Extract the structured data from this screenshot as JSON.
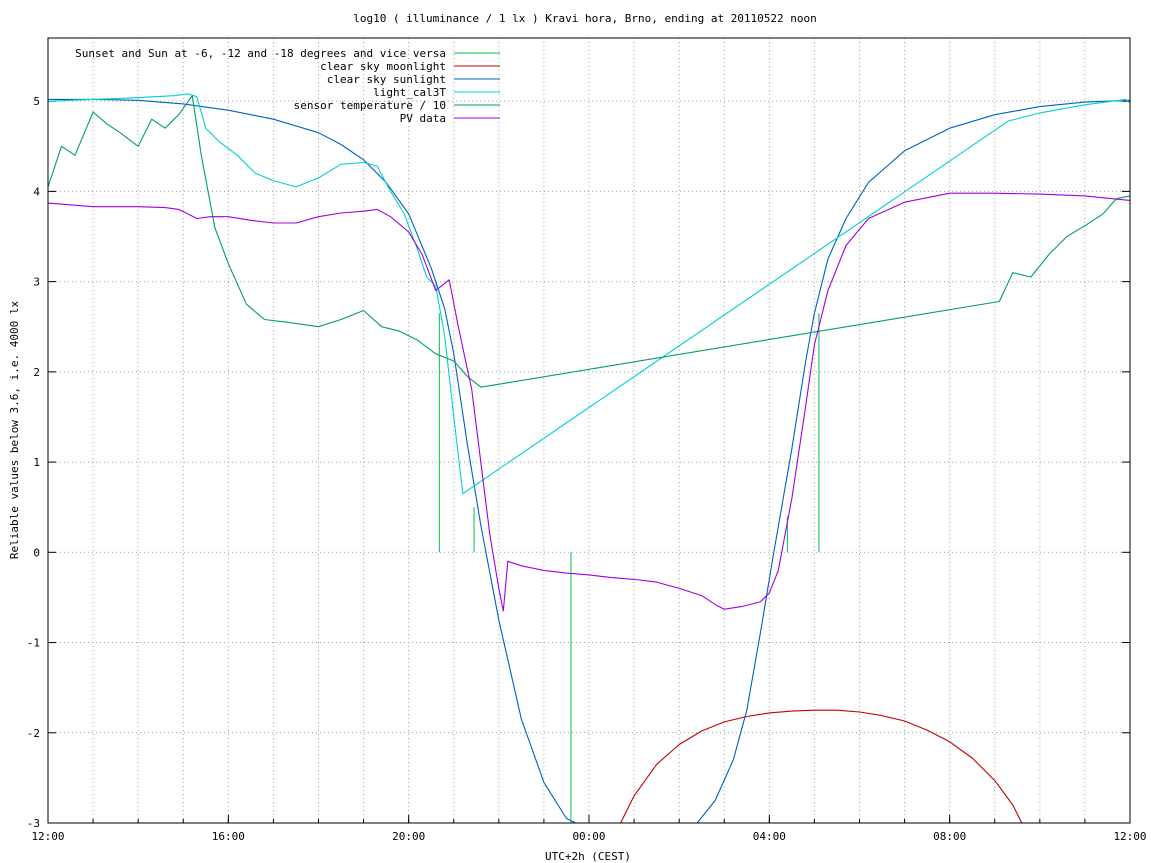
{
  "chart_data": {
    "type": "line",
    "title": "log10 ( illuminance / 1 lx ) Kravi hora, Brno, ending at 20110522 noon",
    "xlabel": "UTC+2h (CEST)",
    "ylabel": "Reliable values below 3.6, i.e. 4000 lx",
    "x_unit": "hours since 12:00 of the previous day",
    "xlim": [
      0,
      24
    ],
    "ylim": [
      -3,
      5.7
    ],
    "x_ticks": [
      {
        "x": 0,
        "label": "12:00"
      },
      {
        "x": 4,
        "label": "16:00"
      },
      {
        "x": 8,
        "label": "20:00"
      },
      {
        "x": 12,
        "label": "00:00"
      },
      {
        "x": 16,
        "label": "04:00"
      },
      {
        "x": 20,
        "label": "08:00"
      },
      {
        "x": 24,
        "label": "12:00"
      }
    ],
    "y_ticks": [
      {
        "y": -3,
        "label": "-3"
      },
      {
        "y": -2,
        "label": "-2"
      },
      {
        "y": -1,
        "label": "-1"
      },
      {
        "y": 0,
        "label": "0"
      },
      {
        "y": 1,
        "label": "1"
      },
      {
        "y": 2,
        "label": "2"
      },
      {
        "y": 3,
        "label": "3"
      },
      {
        "y": 4,
        "label": "4"
      },
      {
        "y": 5,
        "label": "5"
      }
    ],
    "grid": true,
    "legend_position": "top-left",
    "series": [
      {
        "name": "Sunset and Sun at -6, -12 and -18 degrees and vice versa",
        "color": "#00c040",
        "style": "impulses",
        "points": [
          [
            8.68,
            2.65
          ],
          [
            9.45,
            0.5
          ],
          [
            10.4,
            0.0
          ],
          [
            11.6,
            -3.0
          ],
          [
            14.5,
            0.0
          ],
          [
            15.5,
            0.0
          ],
          [
            16.4,
            0.4
          ],
          [
            17.1,
            2.65
          ]
        ]
      },
      {
        "name": "clear sky moonlight",
        "color": "#c00000",
        "style": "line",
        "points": [
          [
            12.7,
            -3.0
          ],
          [
            13.0,
            -2.7
          ],
          [
            13.5,
            -2.35
          ],
          [
            14.0,
            -2.13
          ],
          [
            14.5,
            -1.98
          ],
          [
            15.0,
            -1.88
          ],
          [
            15.5,
            -1.82
          ],
          [
            16.0,
            -1.78
          ],
          [
            16.5,
            -1.76
          ],
          [
            17.0,
            -1.75
          ],
          [
            17.5,
            -1.75
          ],
          [
            18.0,
            -1.77
          ],
          [
            18.5,
            -1.81
          ],
          [
            19.0,
            -1.87
          ],
          [
            19.5,
            -1.97
          ],
          [
            20.0,
            -2.1
          ],
          [
            20.5,
            -2.28
          ],
          [
            21.0,
            -2.53
          ],
          [
            21.4,
            -2.8
          ],
          [
            21.6,
            -3.0
          ]
        ]
      },
      {
        "name": "clear sky sunlight",
        "color": "#0060c0",
        "style": "line",
        "points": [
          [
            0,
            5.02
          ],
          [
            1,
            5.02
          ],
          [
            2,
            5.01
          ],
          [
            3,
            4.97
          ],
          [
            4,
            4.9
          ],
          [
            5,
            4.8
          ],
          [
            6,
            4.65
          ],
          [
            6.5,
            4.52
          ],
          [
            7.0,
            4.35
          ],
          [
            7.5,
            4.1
          ],
          [
            8.0,
            3.75
          ],
          [
            8.5,
            3.15
          ],
          [
            8.8,
            2.7
          ],
          [
            9.0,
            2.2
          ],
          [
            9.3,
            1.2
          ],
          [
            9.6,
            0.3
          ],
          [
            10.0,
            -0.75
          ],
          [
            10.5,
            -1.85
          ],
          [
            11.0,
            -2.55
          ],
          [
            11.5,
            -2.95
          ],
          [
            11.7,
            -3.0
          ]
        ],
        "points2": [
          [
            14.4,
            -3.0
          ],
          [
            14.8,
            -2.75
          ],
          [
            15.2,
            -2.3
          ],
          [
            15.5,
            -1.75
          ],
          [
            15.8,
            -0.9
          ],
          [
            16.1,
            0.0
          ],
          [
            16.5,
            1.15
          ],
          [
            16.8,
            2.1
          ],
          [
            17.0,
            2.65
          ],
          [
            17.3,
            3.25
          ],
          [
            17.7,
            3.7
          ],
          [
            18.2,
            4.1
          ],
          [
            19.0,
            4.45
          ],
          [
            20.0,
            4.7
          ],
          [
            21.0,
            4.85
          ],
          [
            22.0,
            4.94
          ],
          [
            23.0,
            4.99
          ],
          [
            24.0,
            5.01
          ]
        ]
      },
      {
        "name": "light_cal3T",
        "color": "#00d0d0",
        "style": "line",
        "points": [
          [
            0,
            5.0
          ],
          [
            1,
            5.02
          ],
          [
            2,
            5.04
          ],
          [
            2.8,
            5.06
          ],
          [
            3.1,
            5.08
          ],
          [
            3.3,
            5.05
          ],
          [
            3.5,
            4.7
          ],
          [
            3.8,
            4.55
          ],
          [
            4.2,
            4.4
          ],
          [
            4.6,
            4.2
          ],
          [
            5.0,
            4.12
          ],
          [
            5.5,
            4.05
          ],
          [
            6.0,
            4.15
          ],
          [
            6.5,
            4.3
          ],
          [
            7.0,
            4.32
          ],
          [
            7.3,
            4.28
          ],
          [
            7.6,
            4.0
          ],
          [
            7.9,
            3.75
          ],
          [
            8.2,
            3.35
          ],
          [
            8.4,
            3.05
          ],
          [
            8.6,
            2.95
          ],
          [
            8.8,
            2.4
          ],
          [
            9.0,
            1.5
          ],
          [
            9.2,
            0.65
          ],
          [
            21.3,
            4.78
          ],
          [
            22.0,
            4.87
          ],
          [
            23.0,
            4.96
          ],
          [
            23.9,
            5.02
          ],
          [
            24.0,
            4.98
          ]
        ]
      },
      {
        "name": "sensor temperature / 10",
        "color": "#00a060",
        "style": "line",
        "points": [
          [
            0,
            4.05
          ],
          [
            0.3,
            4.5
          ],
          [
            0.6,
            4.4
          ],
          [
            1.0,
            4.88
          ],
          [
            1.3,
            4.75
          ],
          [
            1.6,
            4.65
          ],
          [
            2.0,
            4.5
          ],
          [
            2.3,
            4.8
          ],
          [
            2.6,
            4.7
          ],
          [
            2.9,
            4.85
          ],
          [
            3.2,
            5.06
          ],
          [
            3.4,
            4.4
          ],
          [
            3.7,
            3.6
          ],
          [
            4.0,
            3.2
          ],
          [
            4.4,
            2.75
          ],
          [
            4.8,
            2.58
          ],
          [
            5.3,
            2.55
          ],
          [
            6.0,
            2.5
          ],
          [
            6.5,
            2.58
          ],
          [
            7.0,
            2.68
          ],
          [
            7.4,
            2.5
          ],
          [
            7.8,
            2.45
          ],
          [
            8.2,
            2.35
          ],
          [
            8.6,
            2.2
          ],
          [
            9.0,
            2.12
          ],
          [
            9.3,
            1.95
          ],
          [
            9.6,
            1.83
          ],
          [
            21.1,
            2.78
          ],
          [
            21.4,
            3.1
          ],
          [
            21.8,
            3.05
          ],
          [
            22.2,
            3.3
          ],
          [
            22.6,
            3.5
          ],
          [
            23.0,
            3.62
          ],
          [
            23.4,
            3.75
          ],
          [
            23.7,
            3.92
          ],
          [
            24.0,
            3.95
          ]
        ]
      },
      {
        "name": "PV data",
        "color": "#a000e0",
        "style": "line",
        "points": [
          [
            0,
            3.87
          ],
          [
            1,
            3.83
          ],
          [
            2,
            3.83
          ],
          [
            2.6,
            3.82
          ],
          [
            2.9,
            3.8
          ],
          [
            3.1,
            3.75
          ],
          [
            3.3,
            3.7
          ],
          [
            3.6,
            3.72
          ],
          [
            4.0,
            3.72
          ],
          [
            4.5,
            3.68
          ],
          [
            5.0,
            3.65
          ],
          [
            5.5,
            3.65
          ],
          [
            6.0,
            3.72
          ],
          [
            6.5,
            3.76
          ],
          [
            7.0,
            3.78
          ],
          [
            7.3,
            3.8
          ],
          [
            7.6,
            3.72
          ],
          [
            8.0,
            3.55
          ],
          [
            8.3,
            3.3
          ],
          [
            8.6,
            2.9
          ],
          [
            8.9,
            3.02
          ],
          [
            9.1,
            2.5
          ],
          [
            9.4,
            1.8
          ],
          [
            9.6,
            1.0
          ],
          [
            9.8,
            0.2
          ],
          [
            10.0,
            -0.4
          ],
          [
            10.1,
            -0.65
          ],
          [
            10.2,
            -0.1
          ],
          [
            10.5,
            -0.15
          ],
          [
            11.0,
            -0.2
          ],
          [
            11.5,
            -0.23
          ],
          [
            12.0,
            -0.25
          ],
          [
            12.5,
            -0.28
          ],
          [
            13.0,
            -0.3
          ],
          [
            13.5,
            -0.33
          ],
          [
            14.0,
            -0.4
          ],
          [
            14.5,
            -0.48
          ],
          [
            14.8,
            -0.58
          ],
          [
            15.0,
            -0.63
          ],
          [
            15.4,
            -0.6
          ],
          [
            15.8,
            -0.55
          ],
          [
            16.0,
            -0.45
          ],
          [
            16.2,
            -0.2
          ],
          [
            16.5,
            0.6
          ],
          [
            16.8,
            1.6
          ],
          [
            17.0,
            2.3
          ],
          [
            17.3,
            2.9
          ],
          [
            17.7,
            3.4
          ],
          [
            18.2,
            3.7
          ],
          [
            19.0,
            3.88
          ],
          [
            20.0,
            3.98
          ],
          [
            21.0,
            3.98
          ],
          [
            22.0,
            3.97
          ],
          [
            23.0,
            3.95
          ],
          [
            24.0,
            3.9
          ]
        ]
      }
    ]
  }
}
